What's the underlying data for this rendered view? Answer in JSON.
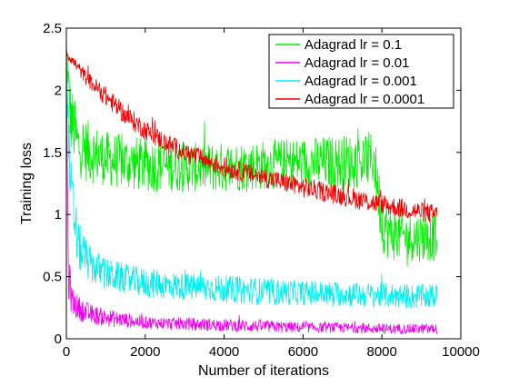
{
  "chart_data": {
    "type": "line",
    "title": "",
    "xlabel": "Number of iterations",
    "ylabel": "Training loss",
    "xlim": [
      0,
      10000
    ],
    "ylim": [
      0,
      2.5
    ],
    "xticks": [
      0,
      2000,
      4000,
      6000,
      8000,
      10000
    ],
    "yticks": [
      0,
      0.5,
      1,
      1.5,
      2,
      2.5
    ],
    "xtick_labels": [
      "0",
      "2000",
      "4000",
      "6000",
      "8000",
      "10000"
    ],
    "ytick_labels": [
      "0",
      "0.5",
      "1",
      "1.5",
      "2",
      "2.5"
    ],
    "grid": false,
    "legend_position": "top-right",
    "series": [
      {
        "name": "Adagrad lr = 0.1",
        "color": "#00ee00",
        "x": [
          0,
          100,
          300,
          600,
          1000,
          1500,
          2000,
          3000,
          4000,
          5000,
          6000,
          7000,
          7800,
          8000,
          8200,
          8600,
          9000,
          9400
        ],
        "y": [
          2.35,
          1.8,
          1.55,
          1.5,
          1.45,
          1.42,
          1.4,
          1.38,
          1.38,
          1.4,
          1.42,
          1.42,
          1.45,
          0.95,
          0.85,
          0.82,
          0.82,
          0.82
        ],
        "spread": [
          0.05,
          0.3,
          0.25,
          0.25,
          0.22,
          0.22,
          0.22,
          0.2,
          0.2,
          0.2,
          0.2,
          0.22,
          0.22,
          0.25,
          0.22,
          0.2,
          0.2,
          0.2
        ]
      },
      {
        "name": "Adagrad lr = 0.01",
        "color": "#ee00ee",
        "x": [
          0,
          50,
          150,
          300,
          600,
          1000,
          1500,
          2000,
          3000,
          4000,
          5000,
          6000,
          7000,
          8000,
          9000,
          9400
        ],
        "y": [
          2.3,
          0.5,
          0.3,
          0.25,
          0.2,
          0.17,
          0.15,
          0.13,
          0.12,
          0.11,
          0.1,
          0.09,
          0.09,
          0.08,
          0.08,
          0.08
        ],
        "spread": [
          0.05,
          0.2,
          0.12,
          0.1,
          0.08,
          0.07,
          0.06,
          0.05,
          0.05,
          0.05,
          0.05,
          0.04,
          0.04,
          0.04,
          0.04,
          0.04
        ]
      },
      {
        "name": "Adagrad lr = 0.001",
        "color": "#00eeee",
        "x": [
          0,
          100,
          300,
          600,
          1000,
          1500,
          2000,
          3000,
          4000,
          5000,
          6000,
          7000,
          8000,
          9000,
          9400
        ],
        "y": [
          2.3,
          1.2,
          0.75,
          0.6,
          0.52,
          0.48,
          0.45,
          0.42,
          0.4,
          0.38,
          0.37,
          0.36,
          0.35,
          0.34,
          0.34
        ],
        "spread": [
          0.05,
          0.3,
          0.2,
          0.15,
          0.13,
          0.12,
          0.12,
          0.11,
          0.11,
          0.11,
          0.1,
          0.1,
          0.1,
          0.1,
          0.1
        ]
      },
      {
        "name": "Adagrad lr = 0.0001",
        "color": "#ee0000",
        "x": [
          0,
          250,
          500,
          1000,
          1500,
          2000,
          2500,
          3000,
          4000,
          5000,
          6000,
          7000,
          8000,
          9000,
          9400
        ],
        "y": [
          2.3,
          2.2,
          2.1,
          1.95,
          1.8,
          1.68,
          1.58,
          1.5,
          1.38,
          1.3,
          1.22,
          1.15,
          1.08,
          1.02,
          1.0
        ],
        "spread": [
          0.04,
          0.05,
          0.06,
          0.08,
          0.08,
          0.08,
          0.08,
          0.08,
          0.08,
          0.08,
          0.08,
          0.08,
          0.08,
          0.08,
          0.08
        ]
      }
    ]
  }
}
